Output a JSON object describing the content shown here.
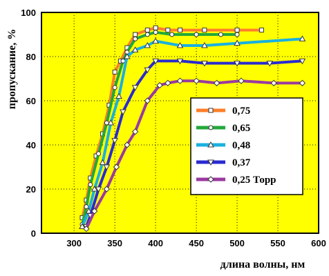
{
  "chart_data": {
    "type": "line",
    "title": "",
    "xlabel": "длина волны, нм",
    "ylabel": "пропускание, %",
    "xlim": [
      260,
      600
    ],
    "ylim": [
      0,
      100
    ],
    "x_ticks": [
      "300",
      "350",
      "400",
      "450",
      "500",
      "550",
      "600"
    ],
    "y_ticks": [
      "0",
      "20",
      "40",
      "60",
      "80",
      "100"
    ],
    "grid": true,
    "background_color": "#ffff00",
    "legend_position": "right",
    "series": [
      {
        "name": "0,75",
        "color": "#ff7f2a",
        "marker": "square",
        "x": [
          310,
          315,
          320,
          327,
          335,
          343,
          350,
          357,
          365,
          375,
          390,
          400,
          415,
          430,
          460,
          500,
          530
        ],
        "y": [
          7,
          15,
          25,
          35,
          45,
          58,
          73,
          78,
          84,
          90,
          92,
          93,
          92,
          92,
          92,
          92,
          92
        ]
      },
      {
        "name": "0,65",
        "color": "#22a83a",
        "marker": "circle",
        "x": [
          310,
          315,
          320,
          330,
          340,
          350,
          360,
          365,
          375,
          390,
          400,
          420,
          450,
          480,
          500
        ],
        "y": [
          4,
          12,
          22,
          36,
          50,
          66,
          78,
          82,
          88,
          90,
          91,
          90,
          90,
          90,
          90
        ]
      },
      {
        "name": "0,48",
        "color": "#1ab0e0",
        "marker": "triangle-up",
        "x": [
          310,
          318,
          325,
          335,
          345,
          355,
          365,
          375,
          390,
          400,
          430,
          460,
          500,
          580
        ],
        "y": [
          3,
          10,
          20,
          32,
          50,
          62,
          80,
          83,
          85,
          87,
          85,
          85,
          86,
          88
        ]
      },
      {
        "name": "0,37",
        "color": "#2a2ad0",
        "marker": "triangle-down",
        "x": [
          315,
          320,
          330,
          340,
          350,
          360,
          375,
          390,
          400,
          430,
          460,
          500,
          540,
          580
        ],
        "y": [
          3,
          8,
          20,
          30,
          42,
          55,
          66,
          74,
          78,
          78,
          77,
          77,
          77,
          78
        ]
      },
      {
        "name": "0,25 Торр",
        "color": "#9a3aa0",
        "marker": "diamond",
        "x": [
          315,
          325,
          340,
          352,
          365,
          375,
          390,
          405,
          415,
          430,
          450,
          475,
          505,
          545,
          580
        ],
        "y": [
          2,
          10,
          20,
          30,
          40,
          46,
          60,
          67,
          68,
          69,
          69,
          68,
          69,
          68,
          68
        ]
      }
    ]
  }
}
